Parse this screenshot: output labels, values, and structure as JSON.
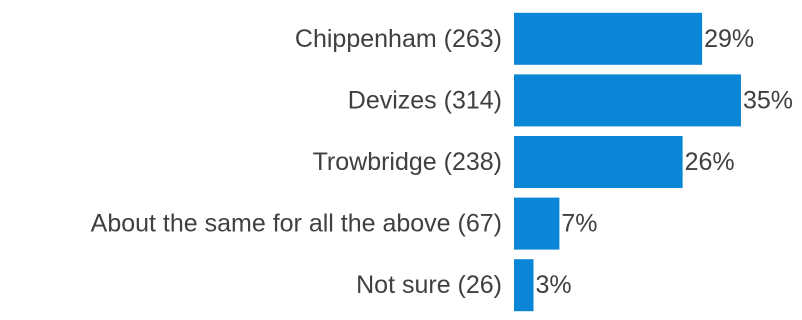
{
  "chart_data": {
    "type": "bar",
    "orientation": "horizontal",
    "categories": [
      "Chippenham (263)",
      "Devizes (314)",
      "Trowbridge (238)",
      "About the same for all the above (67)",
      "Not sure (26)"
    ],
    "values": [
      29,
      35,
      26,
      7,
      3
    ],
    "value_labels": [
      "29%",
      "35%",
      "26%",
      "7%",
      "3%"
    ],
    "title": "",
    "xlabel": "",
    "ylabel": "",
    "xlim": [
      0,
      35
    ],
    "grid": false,
    "legend": "none",
    "bar_color": "#0A86D6",
    "text_color": "#404040"
  }
}
